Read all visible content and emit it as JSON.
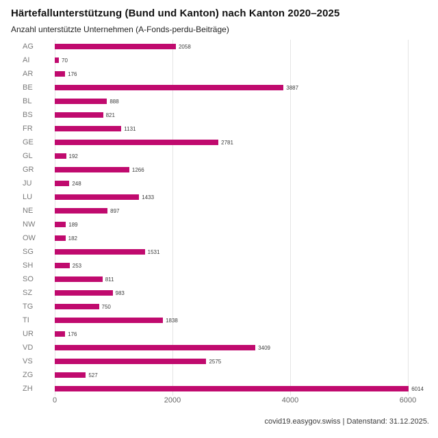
{
  "header": {
    "title": "Härtefallunterstützung (Bund und Kanton) nach Kanton 2020–2025",
    "subtitle": "Anzahl unterstützte Unternehmen (A-Fonds-perdu-Beiträge)"
  },
  "footer": {
    "source": "covid19.easygov.swiss | Datenstand: 31.12.2025."
  },
  "colors": {
    "bar": "#c00a6e",
    "grid": "#e4e4e4",
    "category_label": "#7a7a7a",
    "value_label": "#3c3c3c",
    "tick_label": "#666666"
  },
  "chart_data": {
    "type": "bar",
    "orientation": "horizontal",
    "title": "Härtefallunterstützung (Bund und Kanton) nach Kanton 2020–2025",
    "subtitle": "Anzahl unterstützte Unternehmen (A-Fonds-perdu-Beiträge)",
    "xlabel": "",
    "ylabel": "",
    "categories": [
      "AG",
      "AI",
      "AR",
      "BE",
      "BL",
      "BS",
      "FR",
      "GE",
      "GL",
      "GR",
      "JU",
      "LU",
      "NE",
      "NW",
      "OW",
      "SG",
      "SH",
      "SO",
      "SZ",
      "TG",
      "TI",
      "UR",
      "VD",
      "VS",
      "ZG",
      "ZH"
    ],
    "values": [
      2058,
      70,
      176,
      3887,
      888,
      821,
      1131,
      2781,
      192,
      1266,
      248,
      1433,
      897,
      189,
      182,
      1531,
      253,
      811,
      983,
      750,
      1838,
      176,
      3409,
      2575,
      527,
      6014
    ],
    "x_ticks": [
      0,
      2000,
      4000,
      6000
    ],
    "xlim": [
      0,
      6200
    ],
    "grid": true,
    "legend": false,
    "data_labels": true
  }
}
